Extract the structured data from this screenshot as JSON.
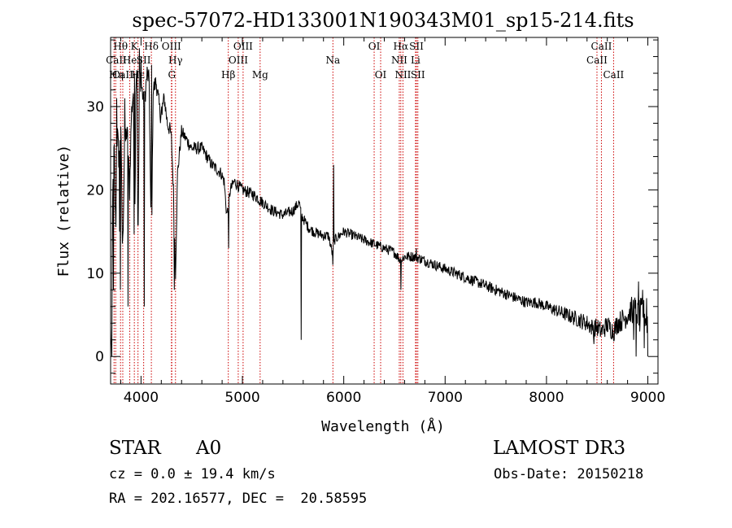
{
  "chart_data": {
    "type": "line",
    "title": "spec-57072-HD133001N190343M01_sp15-214.fits",
    "xlabel": "Wavelength (Å)",
    "ylabel": "Flux (relative)",
    "xlim": [
      3700,
      9100
    ],
    "ylim": [
      -3.3,
      38.3
    ],
    "xticks": [
      4000,
      5000,
      6000,
      7000,
      8000,
      9000
    ],
    "xtick_labels": [
      "4000",
      "5000",
      "6000",
      "7000",
      "8000",
      "9000"
    ],
    "yticks": [
      0,
      10,
      20,
      30
    ],
    "ytick_labels": [
      "0",
      "10",
      "20",
      "30"
    ],
    "grid": false,
    "legend": "none",
    "line_marks": [
      {
        "name": "CaII-K",
        "label": "CaII",
        "x": 3734,
        "row": 1,
        "display": "partial"
      },
      {
        "name": "H-eta",
        "label": "Hη",
        "x": 3750,
        "row": 2,
        "display": "partial"
      },
      {
        "name": "H-theta",
        "label": "Hθ",
        "x": 3798,
        "row": 0
      },
      {
        "name": "CaII-H",
        "label": "CaII",
        "x": 3820,
        "row": 2,
        "display": "partial"
      },
      {
        "name": "He-I",
        "label": "He",
        "x": 3889,
        "row": 1
      },
      {
        "name": "Fe-K",
        "label": "K",
        "x": 3934,
        "row": 0
      },
      {
        "name": "H-epsilon",
        "label": "Hε",
        "x": 3970,
        "row": 2
      },
      {
        "name": "S-II-a",
        "label": "SII",
        "x": 4026,
        "row": 1
      },
      {
        "name": "H-delta",
        "label": "Hδ",
        "x": 4102,
        "row": 0
      },
      {
        "name": "O-III-a",
        "label": "OIII",
        "x": 4300,
        "row": 0
      },
      {
        "name": "H-gamma",
        "label": "Hγ",
        "x": 4340,
        "row": 1
      },
      {
        "name": "G-band",
        "label": "G",
        "x": 4304,
        "row": 2
      },
      {
        "name": "H-beta",
        "label": "Hβ",
        "x": 4861,
        "row": 2
      },
      {
        "name": "O-III-b",
        "label": "OIII",
        "x": 5007,
        "row": 0
      },
      {
        "name": "O-III-c",
        "label": "OIII",
        "x": 4959,
        "row": 1
      },
      {
        "name": "Mg",
        "label": "Mg",
        "x": 5175,
        "row": 2
      },
      {
        "name": "Na",
        "label": "Na",
        "x": 5893,
        "row": 1
      },
      {
        "name": "O-I-a",
        "label": "OI",
        "x": 6300,
        "row": 0
      },
      {
        "name": "O-I-b",
        "label": "OI",
        "x": 6364,
        "row": 2
      },
      {
        "name": "H-alpha",
        "label": "Hα",
        "x": 6563,
        "row": 0
      },
      {
        "name": "N-II-a",
        "label": "NII",
        "x": 6548,
        "row": 1
      },
      {
        "name": "N-II-b",
        "label": "NII",
        "x": 6584,
        "row": 2
      },
      {
        "name": "S-II-b",
        "label": "SII",
        "x": 6717,
        "row": 0
      },
      {
        "name": "Li",
        "label": "Li",
        "x": 6708,
        "row": 1
      },
      {
        "name": "S-II-c",
        "label": "SII",
        "x": 6731,
        "row": 2
      },
      {
        "name": "CaII-a",
        "label": "CaII",
        "x": 8542,
        "row": 0
      },
      {
        "name": "CaII-b",
        "label": "CaII",
        "x": 8498,
        "row": 1
      },
      {
        "name": "CaII-c",
        "label": "CaII",
        "x": 8662,
        "row": 2
      }
    ],
    "series": [
      {
        "name": "spectrum",
        "anchors": [
          [
            3700,
            3
          ],
          [
            3710,
            1
          ],
          [
            3722,
            22
          ],
          [
            3735,
            25
          ],
          [
            3750,
            15
          ],
          [
            3765,
            27
          ],
          [
            3780,
            24
          ],
          [
            3800,
            28
          ],
          [
            3818,
            12
          ],
          [
            3835,
            24
          ],
          [
            3855,
            27
          ],
          [
            3870,
            26
          ],
          [
            3888,
            20
          ],
          [
            3905,
            29
          ],
          [
            3925,
            32
          ],
          [
            3934,
            10
          ],
          [
            3950,
            34
          ],
          [
            3960,
            35
          ],
          [
            3970,
            12
          ],
          [
            3985,
            34
          ],
          [
            4010,
            32
          ],
          [
            4030,
            30
          ],
          [
            4060,
            34
          ],
          [
            4080,
            33
          ],
          [
            4102,
            11
          ],
          [
            4120,
            32
          ],
          [
            4150,
            33
          ],
          [
            4190,
            29
          ],
          [
            4230,
            31
          ],
          [
            4260,
            28
          ],
          [
            4290,
            27
          ],
          [
            4300,
            26
          ],
          [
            4320,
            20
          ],
          [
            4340,
            10
          ],
          [
            4360,
            22
          ],
          [
            4400,
            27
          ],
          [
            4500,
            25
          ],
          [
            4600,
            25
          ],
          [
            4700,
            23
          ],
          [
            4790,
            22
          ],
          [
            4820,
            21
          ],
          [
            4845,
            17
          ],
          [
            4861,
            18
          ],
          [
            4880,
            20
          ],
          [
            4920,
            21
          ],
          [
            5000,
            20
          ],
          [
            5100,
            19.5
          ],
          [
            5200,
            18.5
          ],
          [
            5300,
            17.5
          ],
          [
            5400,
            17
          ],
          [
            5500,
            17.5
          ],
          [
            5560,
            18.5
          ],
          [
            5580,
            17
          ],
          [
            5650,
            15.5
          ],
          [
            5700,
            15
          ],
          [
            5800,
            14.5
          ],
          [
            5850,
            14.5
          ],
          [
            5893,
            12
          ],
          [
            5910,
            14
          ],
          [
            6000,
            15
          ],
          [
            6100,
            14.5
          ],
          [
            6200,
            14
          ],
          [
            6300,
            13.5
          ],
          [
            6400,
            13
          ],
          [
            6500,
            12.5
          ],
          [
            6563,
            11.5
          ],
          [
            6600,
            12
          ],
          [
            6700,
            12
          ],
          [
            6800,
            11.5
          ],
          [
            6900,
            11
          ],
          [
            7000,
            10.5
          ],
          [
            7100,
            10
          ],
          [
            7200,
            9.5
          ],
          [
            7300,
            9
          ],
          [
            7400,
            8.5
          ],
          [
            7500,
            8
          ],
          [
            7600,
            7.5
          ],
          [
            7700,
            7
          ],
          [
            7800,
            6.5
          ],
          [
            7900,
            6.5
          ],
          [
            8000,
            6
          ],
          [
            8100,
            5.5
          ],
          [
            8200,
            5
          ],
          [
            8300,
            4.5
          ],
          [
            8400,
            4
          ],
          [
            8450,
            3.5
          ],
          [
            8500,
            3.5
          ],
          [
            8542,
            3
          ],
          [
            8600,
            3.8
          ],
          [
            8662,
            3
          ],
          [
            8700,
            4
          ],
          [
            8760,
            4.5
          ],
          [
            8800,
            5
          ],
          [
            8860,
            6
          ],
          [
            8900,
            5
          ],
          [
            8950,
            5.5
          ],
          [
            9000,
            4
          ]
        ],
        "spikes": [
          [
            3714,
            0
          ],
          [
            3728,
            8
          ],
          [
            3760,
            31
          ],
          [
            3790,
            15
          ],
          [
            3798,
            8
          ],
          [
            3840,
            31
          ],
          [
            3872,
            6
          ],
          [
            3935,
            34
          ],
          [
            3945,
            22
          ],
          [
            3985,
            37
          ],
          [
            4000,
            36
          ],
          [
            4031,
            6
          ],
          [
            4102,
            20
          ],
          [
            4103,
            35
          ],
          [
            4210,
            29
          ],
          [
            4325,
            16
          ],
          [
            4327,
            8
          ],
          [
            4863,
            13
          ],
          [
            5579,
            2
          ],
          [
            5900,
            23
          ],
          [
            5892,
            11
          ],
          [
            6565,
            8
          ],
          [
            6715,
            13
          ],
          [
            8470,
            1.5
          ],
          [
            8850,
            4
          ],
          [
            8862,
            2
          ],
          [
            8883,
            0
          ],
          [
            8910,
            9
          ],
          [
            8920,
            3
          ],
          [
            8950,
            8
          ],
          [
            8965,
            1
          ],
          [
            8990,
            7
          ],
          [
            9000,
            0
          ]
        ],
        "noise_wavelengths": [
          3700,
          4400,
          6000,
          8000,
          8700,
          9100
        ],
        "noise_amplitudes": [
          1.8,
          0.8,
          0.6,
          0.7,
          1.3,
          2.0
        ]
      }
    ]
  },
  "info": {
    "object_class": "STAR",
    "subclass": "A0",
    "survey": "LAMOST DR3",
    "redshift": "cz = 0.0 ± 19.4 km/s",
    "obs_date": "Obs-Date: 20150218",
    "coords": "RA = 202.16577, DEC =  20.58595"
  },
  "colors": {
    "axes": "#000000",
    "spectrum": "#000000",
    "line_marker": "#cc0000"
  }
}
